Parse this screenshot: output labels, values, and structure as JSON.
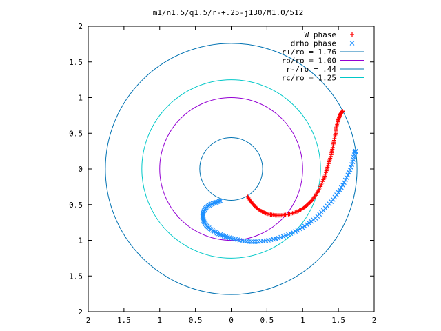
{
  "chart_data": {
    "type": "scatter",
    "title": "m1/n1.5/q1.5/r-+.25-j130/M1.0/512",
    "xlabel": "",
    "ylabel": "",
    "xlim": [
      -2,
      2
    ],
    "ylim": [
      -2,
      2
    ],
    "x_tick_labels": [
      "2",
      "1.5",
      "1",
      "0.5",
      "0",
      "0.5",
      "1",
      "1.5",
      "2"
    ],
    "y_tick_labels": [
      "2",
      "1.5",
      "1",
      "0.5",
      "0",
      "0.5",
      "1",
      "1.5",
      "2"
    ],
    "grid": false,
    "legend_position": "top-right",
    "circles": [
      {
        "name": "r+/ro = 1.76",
        "radius": 1.76,
        "color": "#0072b2"
      },
      {
        "name": "ro/ro = 1.00",
        "radius": 1.0,
        "color": "#9400d3"
      },
      {
        "name": "r-/ro = .44",
        "radius": 0.44,
        "color": "#0072b2"
      },
      {
        "name": "rc/ro = 1.25",
        "radius": 1.25,
        "color": "#00c8c8"
      }
    ],
    "series": [
      {
        "name": "W phase",
        "marker": "+",
        "color": "#ff0000",
        "points": [
          [
            0.23,
            -0.39
          ],
          [
            0.27,
            -0.45
          ],
          [
            0.31,
            -0.5
          ],
          [
            0.36,
            -0.55
          ],
          [
            0.42,
            -0.59
          ],
          [
            0.48,
            -0.62
          ],
          [
            0.55,
            -0.64
          ],
          [
            0.62,
            -0.65
          ],
          [
            0.7,
            -0.65
          ],
          [
            0.78,
            -0.64
          ],
          [
            0.86,
            -0.62
          ],
          [
            0.94,
            -0.59
          ],
          [
            1.01,
            -0.55
          ],
          [
            1.07,
            -0.5
          ],
          [
            1.13,
            -0.44
          ],
          [
            1.18,
            -0.37
          ],
          [
            1.23,
            -0.29
          ],
          [
            1.27,
            -0.2
          ],
          [
            1.31,
            -0.1
          ],
          [
            1.34,
            0.0
          ],
          [
            1.37,
            0.1
          ],
          [
            1.4,
            0.2
          ],
          [
            1.42,
            0.3
          ],
          [
            1.44,
            0.4
          ],
          [
            1.46,
            0.5
          ],
          [
            1.47,
            0.58
          ],
          [
            1.49,
            0.66
          ],
          [
            1.51,
            0.72
          ],
          [
            1.53,
            0.77
          ],
          [
            1.55,
            0.8
          ],
          [
            1.56,
            0.81
          ]
        ]
      },
      {
        "name": "drho phase",
        "marker": "x",
        "color": "#1e90ff",
        "points": [
          [
            -0.15,
            -0.45
          ],
          [
            -0.22,
            -0.47
          ],
          [
            -0.29,
            -0.5
          ],
          [
            -0.35,
            -0.54
          ],
          [
            -0.39,
            -0.6
          ],
          [
            -0.4,
            -0.67
          ],
          [
            -0.38,
            -0.74
          ],
          [
            -0.34,
            -0.8
          ],
          [
            -0.28,
            -0.85
          ],
          [
            -0.2,
            -0.9
          ],
          [
            -0.1,
            -0.94
          ],
          [
            0.0,
            -0.97
          ],
          [
            0.12,
            -1.0
          ],
          [
            0.25,
            -1.02
          ],
          [
            0.38,
            -1.02
          ],
          [
            0.52,
            -1.0
          ],
          [
            0.66,
            -0.97
          ],
          [
            0.8,
            -0.92
          ],
          [
            0.93,
            -0.86
          ],
          [
            1.06,
            -0.78
          ],
          [
            1.18,
            -0.69
          ],
          [
            1.29,
            -0.58
          ],
          [
            1.4,
            -0.46
          ],
          [
            1.5,
            -0.33
          ],
          [
            1.58,
            -0.19
          ],
          [
            1.65,
            -0.05
          ],
          [
            1.7,
            0.1
          ],
          [
            1.73,
            0.23
          ],
          [
            1.74,
            0.25
          ]
        ]
      }
    ]
  }
}
